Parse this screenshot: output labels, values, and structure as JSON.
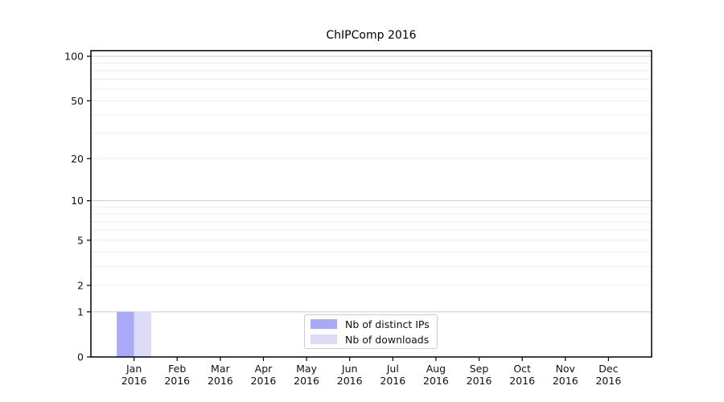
{
  "chart_data": {
    "type": "bar",
    "title": "ChIPComp 2016",
    "categories": [
      "Jan",
      "Feb",
      "Mar",
      "Apr",
      "May",
      "Jun",
      "Jul",
      "Aug",
      "Sep",
      "Oct",
      "Nov",
      "Dec"
    ],
    "category_year": "2016",
    "series": [
      {
        "name": "Nb of distinct IPs",
        "color": "#a9a9f5",
        "values": [
          1,
          0,
          0,
          0,
          0,
          0,
          0,
          0,
          0,
          0,
          0,
          0
        ]
      },
      {
        "name": "Nb of downloads",
        "color": "#dcdcf8",
        "values": [
          1,
          0,
          0,
          0,
          0,
          0,
          0,
          0,
          0,
          0,
          0,
          0
        ]
      }
    ],
    "yscale": "log1p",
    "ylim": [
      0,
      109
    ],
    "y_tick_labels": [
      0,
      1,
      2,
      5,
      10,
      20,
      50,
      100
    ],
    "y_major_gridlines": [
      1,
      10,
      100
    ],
    "y_minor_gridlines": [
      2,
      3,
      4,
      5,
      6,
      7,
      8,
      9,
      20,
      30,
      40,
      50,
      60,
      70,
      80,
      90
    ],
    "grid": true,
    "legend_position": "bottom-center",
    "colors": {
      "grid_major": "#cccccc",
      "grid_minor": "#ededed",
      "axis": "#000000",
      "text": "#111111",
      "background": "#ffffff"
    }
  }
}
